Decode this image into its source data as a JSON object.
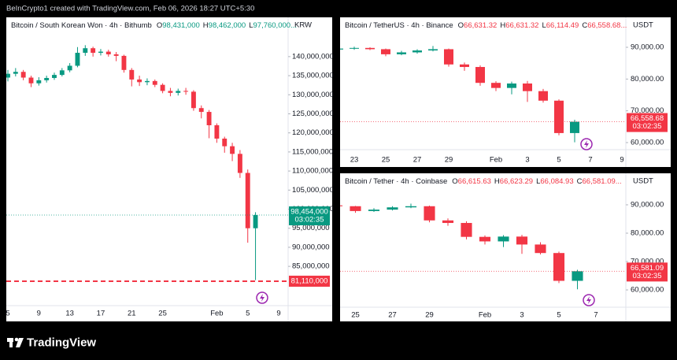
{
  "header": "BeInCrypto1 created with TradingView.com, Feb 06, 2026 18:27 UTC+5:30",
  "brand": "TradingView",
  "chart_data": [
    {
      "type": "candlestick",
      "title": "Bitcoin / South Korean Won · 4h · Bithumb",
      "ohlc": [
        {
          "letter": "O",
          "value": "98,431,000"
        },
        {
          "letter": "H",
          "value": "98,462,000"
        },
        {
          "letter": "L",
          "value": "97,760,000..."
        }
      ],
      "ohlc_color": "#089981",
      "currency": "KRW",
      "up_color": "#089981",
      "down_color": "#f23645",
      "categories": [
        "5",
        null,
        null,
        null,
        "9",
        null,
        null,
        null,
        "13",
        null,
        null,
        null,
        "17",
        null,
        null,
        null,
        "21",
        null,
        null,
        null,
        "25",
        null,
        null,
        null,
        null,
        null,
        null,
        "Feb",
        null,
        null,
        null,
        "5",
        null,
        null,
        null,
        "9"
      ],
      "open": [
        134500000,
        135500000,
        136000000,
        134500000,
        133000000,
        133800000,
        134400000,
        135200000,
        136400000,
        137600000,
        141000000,
        142200000,
        141000000,
        141300000,
        140600000,
        140200000,
        136500000,
        134000000,
        133300000,
        133600000,
        132600000,
        131000000,
        130500000,
        131000000,
        130800000,
        126500000,
        125500000,
        122000000,
        118500000,
        116500000,
        114500000,
        109500000,
        95000000,
        null,
        null,
        null
      ],
      "high": [
        136500000,
        137000000,
        136500000,
        135000000,
        134600000,
        135000000,
        135800000,
        137000000,
        138300000,
        142500000,
        143000000,
        142600000,
        142000000,
        141800000,
        141200000,
        140500000,
        137000000,
        135000000,
        134300000,
        134000000,
        133000000,
        131800000,
        131600000,
        131800000,
        131200000,
        127200000,
        126000000,
        122500000,
        119000000,
        117400000,
        115500000,
        110400000,
        99200000,
        null,
        null,
        null
      ],
      "low": [
        133500000,
        134800000,
        133800000,
        132000000,
        132400000,
        133200000,
        133900000,
        134800000,
        135900000,
        137200000,
        140200000,
        140000000,
        140300000,
        140000000,
        138800000,
        135800000,
        132200000,
        132300000,
        132500000,
        132000000,
        130400000,
        129600000,
        129800000,
        130000000,
        125800000,
        123800000,
        118600000,
        117400000,
        114800000,
        112600000,
        108200000,
        91200000,
        81400000,
        null,
        null,
        null
      ],
      "close": [
        135500000,
        136000000,
        134500000,
        133000000,
        133800000,
        134400000,
        135200000,
        136400000,
        137600000,
        141000000,
        142200000,
        141000000,
        141300000,
        140600000,
        140200000,
        136500000,
        134000000,
        133300000,
        133600000,
        132600000,
        131000000,
        130500000,
        131000000,
        130800000,
        126500000,
        125500000,
        122000000,
        118500000,
        116500000,
        114500000,
        109500000,
        95000000,
        98454000,
        null,
        null,
        null
      ],
      "ylim": [
        74700000,
        150300000
      ],
      "yticks": [
        {
          "value": 85000000,
          "label": "85,000,000"
        },
        {
          "value": 90000000,
          "label": "90,000,000"
        },
        {
          "value": 95000000,
          "label": "95,000,000"
        },
        {
          "value": 100000000,
          "label": "100,000,000"
        },
        {
          "value": 105000000,
          "label": "105,000,000"
        },
        {
          "value": 110000000,
          "label": "110,000,000"
        },
        {
          "value": 115000000,
          "label": "115,000,000"
        },
        {
          "value": 120000000,
          "label": "120,000,000"
        },
        {
          "value": 125000000,
          "label": "125,000,000"
        },
        {
          "value": 130000000,
          "label": "130,000,000"
        },
        {
          "value": 135000000,
          "label": "135,000,000"
        },
        {
          "value": 140000000,
          "label": "140,000,000"
        }
      ],
      "last_price": {
        "value": 98454000,
        "label": "98,454,000"
      },
      "last_color": "#089981",
      "countdown": "03:02:35",
      "hline": {
        "value": 81110000,
        "label": "81,110,000"
      },
      "hline_color": "#f23645"
    },
    {
      "type": "candlestick",
      "title": "Bitcoin / TetherUS · 4h · Binance",
      "ohlc": [
        {
          "letter": "O",
          "value": "66,631.32"
        },
        {
          "letter": "H",
          "value": "66,631.32"
        },
        {
          "letter": "L",
          "value": "66,114.49"
        },
        {
          "letter": "C",
          "value": "66,558.68..."
        }
      ],
      "ohlc_color": "#f23645",
      "currency": "USDT",
      "up_color": "#089981",
      "down_color": "#f23645",
      "categories": [
        null,
        "23",
        null,
        "25",
        null,
        "27",
        null,
        "29",
        null,
        null,
        "Feb",
        null,
        "3",
        null,
        "5",
        null,
        "7",
        null,
        "9"
      ],
      "open": [
        89300,
        89600,
        89800,
        89400,
        87800,
        88400,
        89000,
        89400,
        84600,
        83800,
        78800,
        77200,
        78600,
        76200,
        73200,
        63000,
        null,
        null,
        null
      ],
      "high": [
        90000,
        90200,
        90000,
        89600,
        88900,
        89400,
        90400,
        89600,
        85200,
        84300,
        79300,
        79200,
        79400,
        76900,
        73600,
        67200,
        null,
        null,
        null
      ],
      "low": [
        88900,
        89200,
        89100,
        87200,
        87500,
        88000,
        88700,
        83900,
        82600,
        77900,
        76200,
        75200,
        72800,
        72600,
        62300,
        60100,
        null,
        null,
        null
      ],
      "close": [
        89600,
        89800,
        89400,
        87800,
        88400,
        89000,
        89400,
        84600,
        83800,
        78800,
        77200,
        78600,
        76200,
        73200,
        63000,
        66558.68,
        null,
        null,
        null
      ],
      "ylim": [
        57770,
        99430
      ],
      "yticks": [
        {
          "value": 60000,
          "label": "60,000.00"
        },
        {
          "value": 70000,
          "label": "70,000.00"
        },
        {
          "value": 80000,
          "label": "80,000.00"
        },
        {
          "value": 90000,
          "label": "90,000.00"
        }
      ],
      "last_price": {
        "value": 66558.68,
        "label": "66,558.68"
      },
      "last_color": "#f23645",
      "countdown": "03:02:35"
    },
    {
      "type": "candlestick",
      "title": "Bitcoin / Tether · 4h · Coinbase",
      "ohlc": [
        {
          "letter": "O",
          "value": "66,615.63"
        },
        {
          "letter": "H",
          "value": "66,623.29"
        },
        {
          "letter": "L",
          "value": "66,084.93"
        },
        {
          "letter": "C",
          "value": "66,581.09..."
        }
      ],
      "ohlc_color": "#f23645",
      "currency": "USDT",
      "up_color": "#089981",
      "down_color": "#f23645",
      "categories": [
        null,
        "25",
        null,
        "27",
        null,
        "29",
        null,
        null,
        "Feb",
        null,
        "3",
        null,
        "5",
        null,
        "7",
        null
      ],
      "open": [
        89800,
        89500,
        87800,
        88300,
        89100,
        89500,
        84500,
        83600,
        78700,
        77100,
        78800,
        76000,
        73000,
        63200,
        null,
        null
      ],
      "high": [
        90100,
        89600,
        88800,
        89500,
        90400,
        89700,
        85200,
        84200,
        79200,
        79300,
        79400,
        76800,
        73500,
        67100,
        null,
        null
      ],
      "low": [
        89200,
        87200,
        87500,
        88000,
        88800,
        83800,
        82600,
        77800,
        76000,
        75100,
        72700,
        72500,
        62400,
        60200,
        null,
        null
      ],
      "close": [
        89500,
        87800,
        88300,
        89100,
        89500,
        84500,
        83600,
        78700,
        77100,
        78800,
        76000,
        73000,
        63200,
        66581.09,
        null,
        null
      ],
      "ylim": [
        53900,
        101100
      ],
      "yticks": [
        {
          "value": 60000,
          "label": "60,000.00"
        },
        {
          "value": 70000,
          "label": "70,000.00"
        },
        {
          "value": 80000,
          "label": "80,000.00"
        },
        {
          "value": 90000,
          "label": "90,000.00"
        }
      ],
      "last_price": {
        "value": 66581.09,
        "label": "66,581.09"
      },
      "last_color": "#f23645",
      "countdown": "03:02:35"
    }
  ]
}
